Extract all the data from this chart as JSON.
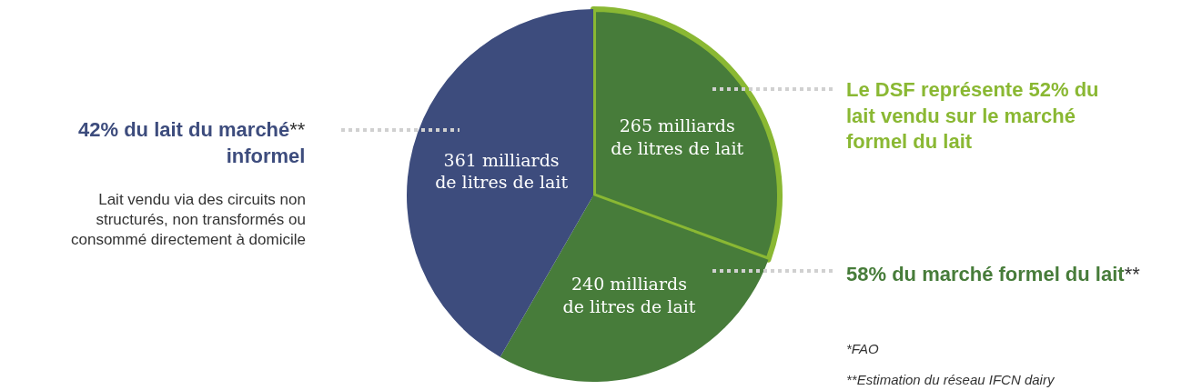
{
  "chart_data": {
    "type": "pie",
    "categories": [
      null,
      null,
      null
    ],
    "values": [
      265,
      240,
      361
    ],
    "colors": [
      "#477c3a",
      "#477c3a",
      "#3d4c7d"
    ],
    "value_labels": [
      "265 milliards de litres de lait",
      "240 milliards de litres de lait",
      "361 milliards de litres de lait"
    ],
    "annotations": [
      "42% du lait du marché** informel",
      "Lait vendu via des circuits non structurés, non transformés ou consommé directement à domicile",
      "Le DSF représente 52% du lait vendu sur le marché formel du lait",
      "58% du marché formel du lait**",
      "*FAO",
      "**Estimation du réseau IFCN dairy"
    ],
    "legend": false
  }
}
